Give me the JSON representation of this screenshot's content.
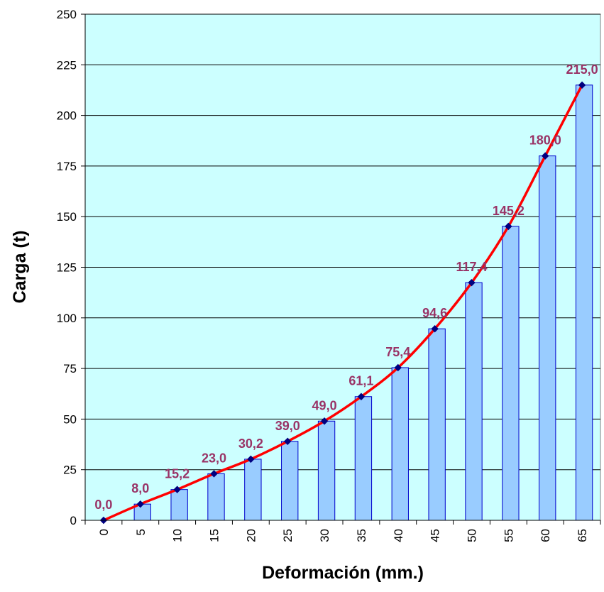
{
  "chart_data": {
    "type": "bar",
    "categories": [
      "0",
      "5",
      "10",
      "15",
      "20",
      "25",
      "30",
      "35",
      "40",
      "45",
      "50",
      "55",
      "60",
      "65"
    ],
    "values": [
      0,
      8.0,
      15.2,
      23.0,
      30.2,
      39.0,
      49.0,
      61.1,
      75.4,
      94.6,
      117.4,
      145.2,
      180.0,
      215.0
    ],
    "data_labels": [
      "0,0",
      "8,0",
      "15,2",
      "23,0",
      "30,2",
      "39,0",
      "49,0",
      "61,1",
      "75,4",
      "94,6",
      "117,4",
      "145,2",
      "180,0",
      "215,0"
    ],
    "series_overlay": "line-with-markers",
    "xlabel": "Deformación (mm.)",
    "ylabel": "Carga (t)",
    "ylim": [
      0,
      250
    ],
    "yticks": [
      "0",
      "25",
      "50",
      "75",
      "100",
      "125",
      "150",
      "175",
      "200",
      "225",
      "250"
    ],
    "grid": "horizontal",
    "legend": "none",
    "colors": {
      "plot_background": "#CCFFFF",
      "bar_fill": "#99CCFF",
      "bar_stroke": "#0000CC",
      "line": "#FF0000",
      "marker": "#000080",
      "data_label": "#993366",
      "grid": "#000000"
    }
  }
}
